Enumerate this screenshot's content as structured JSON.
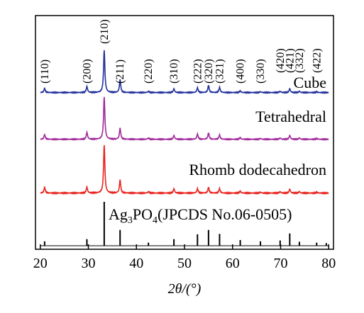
{
  "chart_data": {
    "type": "line",
    "xlabel": "2θ/(°)",
    "xlim": [
      19,
      81
    ],
    "x_ticks": [
      20,
      30,
      40,
      50,
      60,
      70,
      80
    ],
    "grid": false,
    "hkl_labels": [
      {
        "text": "(110)",
        "x": 20.9
      },
      {
        "text": "(200)",
        "x": 29.7
      },
      {
        "text": "(210)",
        "x": 33.3
      },
      {
        "text": "(211)",
        "x": 36.6
      },
      {
        "text": "(220)",
        "x": 42.5
      },
      {
        "text": "(310)",
        "x": 47.8
      },
      {
        "text": "(222)",
        "x": 52.7
      },
      {
        "text": "(320)",
        "x": 55.0
      },
      {
        "text": "(321)",
        "x": 57.3
      },
      {
        "text": "(400)",
        "x": 61.6
      },
      {
        "text": "(330)",
        "x": 65.8
      },
      {
        "text": "(420)",
        "x": 69.9
      },
      {
        "text": "(421)",
        "x": 71.9
      },
      {
        "text": "(332)",
        "x": 73.9
      },
      {
        "text": "(422)",
        "x": 77.5
      }
    ],
    "series": [
      {
        "name": "Cube",
        "color": "#1f2f9a",
        "peaks": [
          {
            "x": 20.9,
            "h": 0.1
          },
          {
            "x": 29.7,
            "h": 0.14
          },
          {
            "x": 33.3,
            "h": 1.0
          },
          {
            "x": 36.6,
            "h": 0.3
          },
          {
            "x": 42.5,
            "h": 0.03
          },
          {
            "x": 47.8,
            "h": 0.09
          },
          {
            "x": 52.7,
            "h": 0.11
          },
          {
            "x": 55.0,
            "h": 0.17
          },
          {
            "x": 57.3,
            "h": 0.12
          },
          {
            "x": 61.6,
            "h": 0.04
          },
          {
            "x": 65.8,
            "h": 0.02
          },
          {
            "x": 69.9,
            "h": 0.03
          },
          {
            "x": 71.9,
            "h": 0.09
          },
          {
            "x": 73.9,
            "h": 0.03
          },
          {
            "x": 77.5,
            "h": 0.02
          }
        ]
      },
      {
        "name": "Tetrahedral",
        "color": "#a0289a",
        "peaks": [
          {
            "x": 20.9,
            "h": 0.11
          },
          {
            "x": 29.7,
            "h": 0.16
          },
          {
            "x": 33.3,
            "h": 1.0
          },
          {
            "x": 36.6,
            "h": 0.26
          },
          {
            "x": 42.5,
            "h": 0.03
          },
          {
            "x": 47.8,
            "h": 0.09
          },
          {
            "x": 52.7,
            "h": 0.12
          },
          {
            "x": 55.0,
            "h": 0.15
          },
          {
            "x": 57.3,
            "h": 0.1
          },
          {
            "x": 61.6,
            "h": 0.04
          },
          {
            "x": 65.8,
            "h": 0.02
          },
          {
            "x": 69.9,
            "h": 0.03
          },
          {
            "x": 71.9,
            "h": 0.09
          },
          {
            "x": 73.9,
            "h": 0.03
          },
          {
            "x": 77.5,
            "h": 0.02
          }
        ]
      },
      {
        "name": "Rhomb dodecahedron",
        "color": "#e8231e",
        "peaks": [
          {
            "x": 20.9,
            "h": 0.12
          },
          {
            "x": 29.7,
            "h": 0.12
          },
          {
            "x": 33.3,
            "h": 1.0
          },
          {
            "x": 36.6,
            "h": 0.27
          },
          {
            "x": 42.5,
            "h": 0.03
          },
          {
            "x": 47.8,
            "h": 0.09
          },
          {
            "x": 52.7,
            "h": 0.09
          },
          {
            "x": 55.0,
            "h": 0.12
          },
          {
            "x": 57.3,
            "h": 0.09
          },
          {
            "x": 61.6,
            "h": 0.04
          },
          {
            "x": 65.8,
            "h": 0.02
          },
          {
            "x": 69.9,
            "h": 0.03
          },
          {
            "x": 71.9,
            "h": 0.08
          },
          {
            "x": 73.9,
            "h": 0.03
          },
          {
            "x": 77.5,
            "h": 0.02
          }
        ]
      },
      {
        "name": "Ag3PO4(JPCDS No.06-0505)",
        "label_parts": {
          "pre": "Ag",
          "sub1": "3",
          "mid": "PO",
          "sub2": "4",
          "post": "(JPCDS No.06-0505)"
        },
        "color": "#000000",
        "sticks": [
          {
            "x": 20.9,
            "h": 0.1
          },
          {
            "x": 29.7,
            "h": 0.15
          },
          {
            "x": 33.3,
            "h": 1.0
          },
          {
            "x": 36.6,
            "h": 0.36
          },
          {
            "x": 42.5,
            "h": 0.07
          },
          {
            "x": 47.8,
            "h": 0.15
          },
          {
            "x": 52.7,
            "h": 0.26
          },
          {
            "x": 55.0,
            "h": 0.36
          },
          {
            "x": 57.3,
            "h": 0.27
          },
          {
            "x": 61.6,
            "h": 0.13
          },
          {
            "x": 65.8,
            "h": 0.1
          },
          {
            "x": 69.9,
            "h": 0.12
          },
          {
            "x": 71.9,
            "h": 0.28
          },
          {
            "x": 73.9,
            "h": 0.09
          },
          {
            "x": 77.5,
            "h": 0.07
          },
          {
            "x": 79.5,
            "h": 0.06
          }
        ]
      }
    ]
  }
}
